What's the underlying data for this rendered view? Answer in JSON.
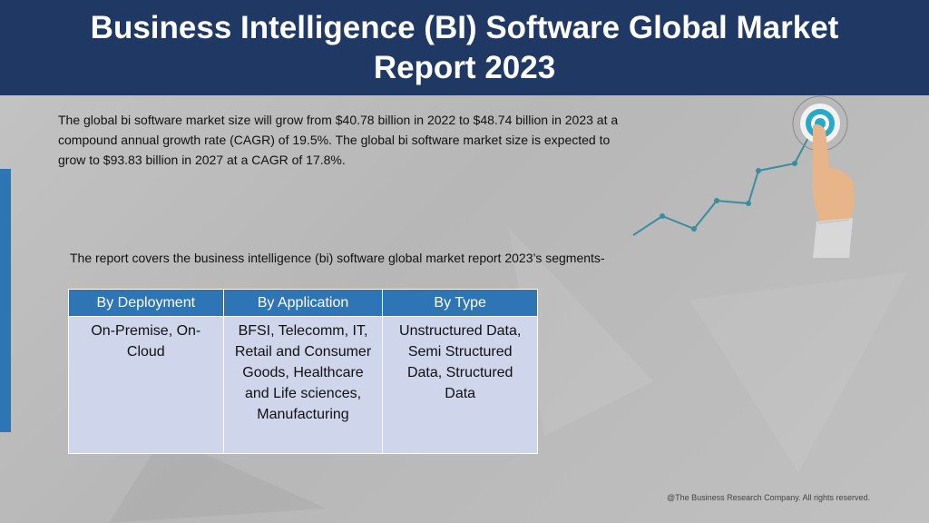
{
  "header": {
    "title": "Business Intelligence (BI) Software Global Market Report 2023"
  },
  "intro": {
    "text": "The global bi software market size will grow from $40.78 billion in 2022 to $48.74 billion in 2023 at a compound annual growth rate (CAGR) of 19.5%. The global bi software market size is expected to grow to $93.83 billion in 2027 at a CAGR of 17.8%."
  },
  "segments": {
    "intro": "The report covers the business intelligence (bi) software global market report 2023’s segments-",
    "columns": [
      "By Deployment",
      "By Application",
      "By Type"
    ],
    "cells": [
      "On-Premise, On-Cloud",
      "BFSI, Telecomm, IT, Retail and Consumer Goods, Healthcare and Life sciences, Manufacturing",
      "Unstructured Data, Semi Structured Data, Structured Data"
    ]
  },
  "graphic": {
    "icon": "target-hand-growth-icon",
    "colors": {
      "line": "#3a8ca0",
      "target": "#2aa8c8",
      "skin": "#e8b48a",
      "sleeve": "#d8d8d8"
    }
  },
  "footer": {
    "copyright": "@The Business Research Company. All rights reserved."
  },
  "colors": {
    "header": "#1f3864",
    "accent": "#2e75b6",
    "table_header": "#2e75b6",
    "table_cell": "#cfd5ea"
  }
}
